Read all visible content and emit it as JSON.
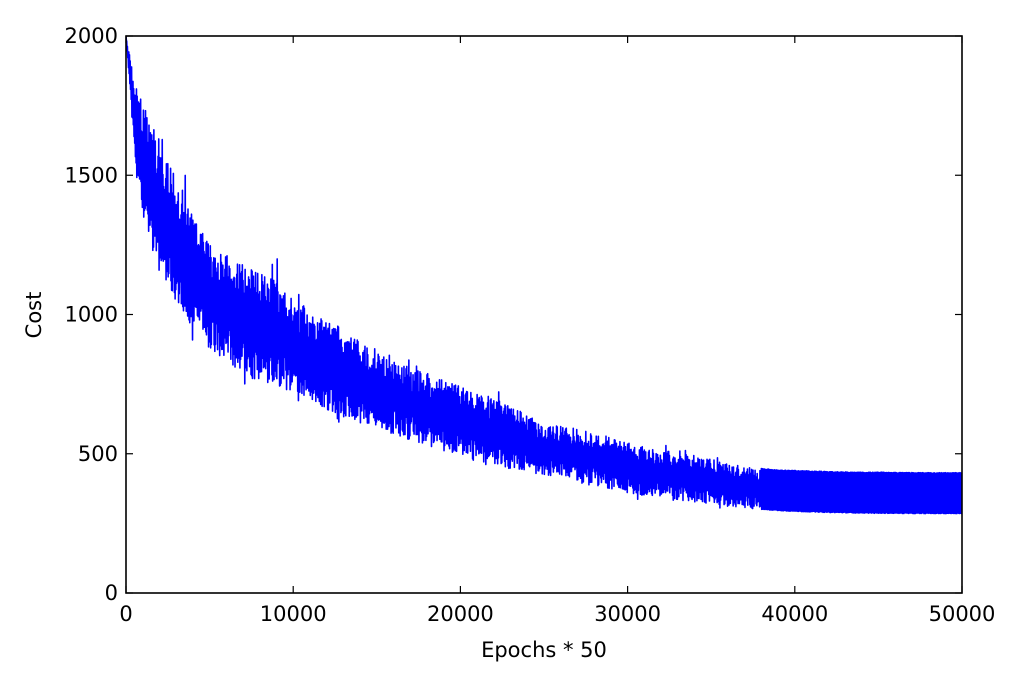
{
  "chart_data": {
    "type": "line",
    "title": "",
    "xlabel": "Epochs * 50",
    "ylabel": "Cost",
    "xlim": [
      0,
      50000
    ],
    "ylim": [
      0,
      2000
    ],
    "xticks": [
      0,
      10000,
      20000,
      30000,
      40000,
      50000
    ],
    "xtick_labels": [
      "0",
      "10000",
      "20000",
      "30000",
      "40000",
      "50000"
    ],
    "yticks": [
      0,
      500,
      1000,
      1500,
      2000
    ],
    "ytick_labels": [
      "0",
      "500",
      "1000",
      "1500",
      "2000"
    ],
    "grid": false,
    "legend": "none",
    "line_color": "#0000ff",
    "series": [
      {
        "x": [
          0,
          500,
          1000,
          2000,
          3000,
          4000,
          5000,
          6000,
          7000,
          8000,
          9000,
          10000,
          11000,
          12000,
          13000,
          14000,
          15000,
          16000,
          17000,
          18000,
          19000,
          20000,
          21000,
          22000,
          23000,
          24000,
          25000,
          26000,
          27000,
          28000,
          29000,
          30000,
          31000,
          32000,
          33000,
          34000,
          35000,
          36000,
          37000,
          38000,
          39000,
          40000,
          41000,
          42000,
          43000,
          44000,
          45000,
          46000,
          47000,
          48000,
          49000,
          50000
        ],
        "y_upper": [
          2000,
          1850,
          1750,
          1650,
          1500,
          1350,
          1250,
          1230,
          1180,
          1150,
          1120,
          1050,
          1020,
          980,
          950,
          900,
          860,
          830,
          810,
          790,
          770,
          740,
          720,
          700,
          670,
          640,
          615,
          600,
          590,
          575,
          560,
          540,
          525,
          515,
          505,
          495,
          480,
          465,
          455,
          447,
          442,
          440,
          438,
          436,
          435,
          434,
          434,
          433,
          433,
          432,
          432,
          432
        ],
        "y_lower": [
          2000,
          1550,
          1350,
          1150,
          1050,
          950,
          880,
          830,
          780,
          760,
          740,
          720,
          690,
          660,
          630,
          610,
          590,
          570,
          550,
          530,
          510,
          490,
          470,
          460,
          445,
          430,
          420,
          410,
          395,
          385,
          375,
          360,
          350,
          340,
          332,
          325,
          318,
          310,
          305,
          300,
          296,
          293,
          291,
          289,
          288,
          287,
          286,
          286,
          285,
          285,
          285,
          285
        ]
      }
    ]
  }
}
